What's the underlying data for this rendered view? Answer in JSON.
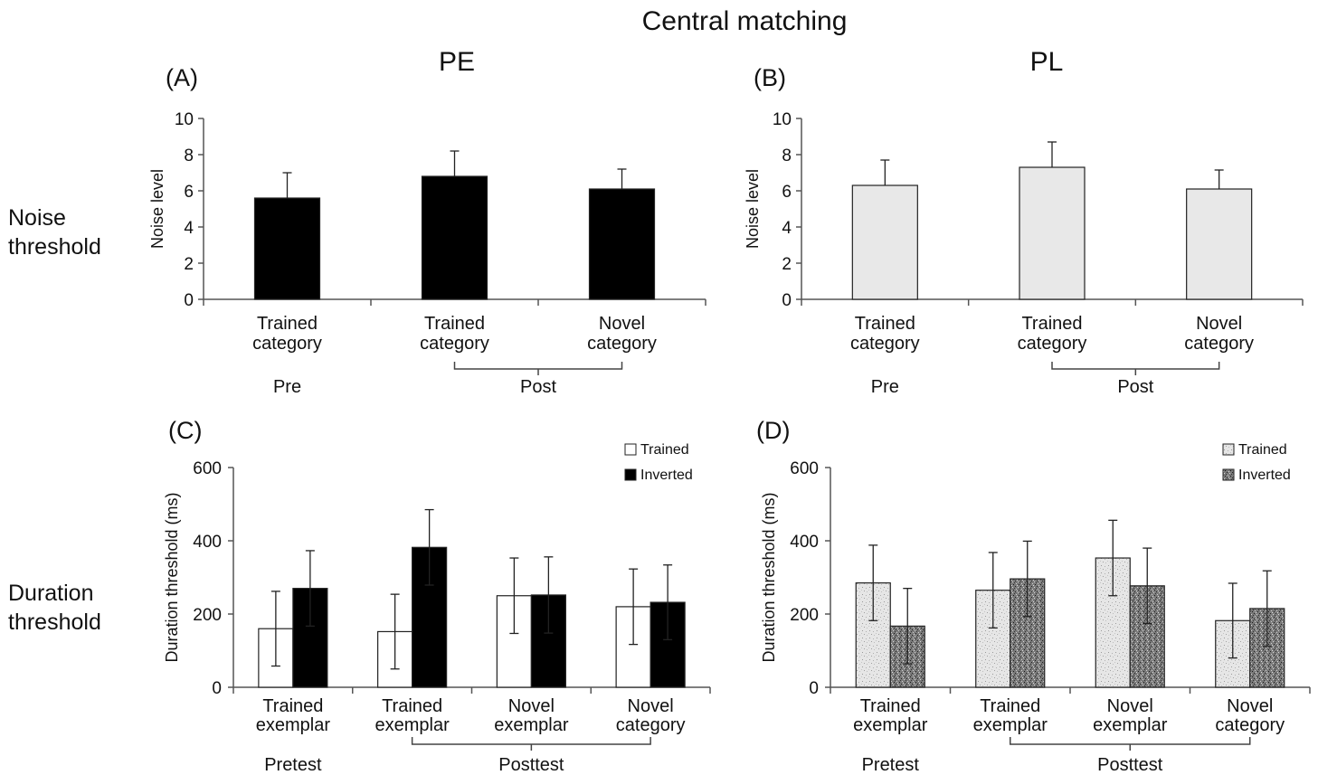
{
  "figure": {
    "title": "Central matching",
    "column_titles": [
      "PE",
      "PL"
    ],
    "row_labels": [
      [
        "Noise",
        "threshold"
      ],
      [
        "Duration",
        "threshold"
      ]
    ]
  },
  "chart_data": [
    {
      "panel": "(A)",
      "type": "bar",
      "ylabel": "Noise level",
      "ylim": [
        0,
        10
      ],
      "yticks": [
        0,
        2,
        4,
        6,
        8,
        10
      ],
      "categories": [
        [
          "Trained",
          "category"
        ],
        [
          "Trained",
          "category"
        ],
        [
          "Novel",
          "category"
        ]
      ],
      "series": [
        {
          "values": [
            5.6,
            6.8,
            6.1
          ],
          "errors": [
            1.4,
            1.4,
            1.1
          ],
          "color": "#000000"
        }
      ],
      "groups": [
        {
          "label": "Pre",
          "indices": [
            0
          ]
        },
        {
          "label": "Post",
          "indices": [
            1,
            2
          ]
        }
      ]
    },
    {
      "panel": "(B)",
      "type": "bar",
      "ylabel": "Noise level",
      "ylim": [
        0,
        10
      ],
      "yticks": [
        0,
        2,
        4,
        6,
        8,
        10
      ],
      "categories": [
        [
          "Trained",
          "category"
        ],
        [
          "Trained",
          "category"
        ],
        [
          "Novel",
          "category"
        ]
      ],
      "series": [
        {
          "values": [
            6.3,
            7.3,
            6.1
          ],
          "errors": [
            1.4,
            1.4,
            1.05
          ],
          "color": "#e8e8e8"
        }
      ],
      "groups": [
        {
          "label": "Pre",
          "indices": [
            0
          ]
        },
        {
          "label": "Post",
          "indices": [
            1,
            2
          ]
        }
      ]
    },
    {
      "panel": "(C)",
      "type": "bar",
      "ylabel": "Duration threshold (ms)",
      "ylim": [
        0,
        600
      ],
      "yticks": [
        0,
        200,
        400,
        600
      ],
      "categories": [
        [
          "Trained",
          "exemplar"
        ],
        [
          "Trained",
          "exemplar"
        ],
        [
          "Novel",
          "exemplar"
        ],
        [
          "Novel",
          "category"
        ]
      ],
      "series": [
        {
          "name": "Trained",
          "values": [
            160,
            152,
            250,
            220
          ],
          "errors": [
            102,
            102,
            103,
            103
          ],
          "color": "#ffffff"
        },
        {
          "name": "Inverted",
          "values": [
            270,
            382,
            252,
            232
          ],
          "errors": [
            103,
            103,
            104,
            102
          ],
          "color": "#000000"
        }
      ],
      "legend": "top-right",
      "groups": [
        {
          "label": "Pretest",
          "indices": [
            0
          ]
        },
        {
          "label": "Posttest",
          "indices": [
            1,
            2,
            3
          ]
        }
      ]
    },
    {
      "panel": "(D)",
      "type": "bar",
      "ylabel": "Duration threshold (ms)",
      "ylim": [
        0,
        600
      ],
      "yticks": [
        0,
        200,
        400,
        600
      ],
      "categories": [
        [
          "Trained",
          "exemplar"
        ],
        [
          "Trained",
          "exemplar"
        ],
        [
          "Novel",
          "exemplar"
        ],
        [
          "Novel",
          "category"
        ]
      ],
      "series": [
        {
          "name": "Trained",
          "values": [
            285,
            265,
            353,
            182
          ],
          "errors": [
            103,
            103,
            103,
            102
          ],
          "color": "#dddddd"
        },
        {
          "name": "Inverted",
          "values": [
            167,
            296,
            277,
            215
          ],
          "errors": [
            103,
            103,
            103,
            103
          ],
          "color": "#6e6e6e"
        }
      ],
      "legend": "top-right",
      "groups": [
        {
          "label": "Pretest",
          "indices": [
            0
          ]
        },
        {
          "label": "Posttest",
          "indices": [
            1,
            2,
            3
          ]
        }
      ]
    }
  ]
}
